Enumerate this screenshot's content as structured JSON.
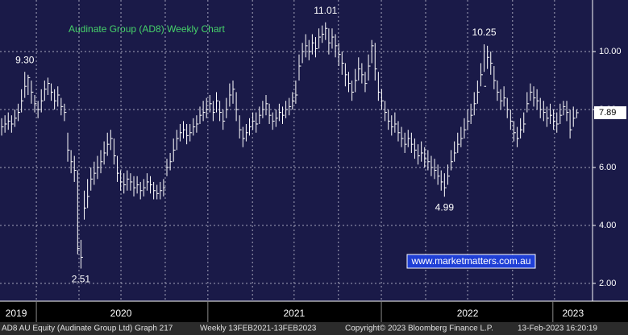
{
  "chart_data": {
    "type": "ohlc",
    "title": "Audinate Group (AD8) Weekly Chart",
    "color": "#ffffff",
    "high": [
      7.7,
      7.8,
      7.9,
      7.8,
      8.0,
      8.2,
      8.7,
      9.3,
      9.2,
      9.0,
      8.5,
      8.3,
      8.7,
      9.0,
      9.1,
      8.9,
      8.7,
      8.8,
      8.4,
      8.2,
      7.2,
      6.6,
      6.4,
      5.9,
      3.5,
      5.2,
      5.6,
      6.0,
      6.2,
      6.4,
      6.6,
      6.9,
      7.2,
      7.3,
      7.0,
      6.4,
      5.9,
      5.8,
      5.9,
      5.8,
      5.7,
      5.7,
      5.5,
      5.6,
      5.8,
      5.7,
      5.5,
      5.4,
      5.5,
      5.6,
      6.3,
      6.5,
      7.0,
      7.3,
      7.5,
      7.6,
      7.5,
      7.5,
      7.7,
      7.8,
      8.1,
      8.3,
      8.4,
      8.5,
      8.3,
      8.6,
      8.3,
      8.0,
      8.4,
      8.9,
      9.0,
      8.6,
      7.8,
      7.4,
      7.5,
      7.7,
      7.9,
      7.9,
      8.1,
      8.3,
      8.5,
      8.2,
      7.9,
      8.0,
      8.2,
      8.1,
      8.3,
      8.4,
      8.6,
      9.0,
      9.9,
      10.3,
      10.6,
      10.4,
      10.6,
      10.5,
      10.8,
      10.9,
      11.01,
      10.8,
      10.8,
      10.6,
      10.3,
      10.0,
      9.6,
      9.3,
      9.0,
      9.4,
      9.8,
      9.6,
      9.3,
      9.9,
      10.4,
      10.3,
      9.3,
      8.7,
      8.3,
      8.0,
      7.8,
      7.9,
      7.6,
      7.4,
      7.2,
      7.3,
      7.2,
      7.0,
      6.8,
      6.9,
      6.7,
      6.6,
      6.4,
      6.3,
      6.1,
      5.9,
      5.8,
      6.1,
      6.6,
      6.9,
      7.2,
      7.4,
      7.7,
      8.0,
      8.2,
      8.6,
      9.0,
      9.6,
      10.25,
      10.2,
      10.0,
      9.5,
      9.0,
      8.7,
      8.8,
      8.4,
      8.0,
      7.6,
      7.4,
      7.7,
      7.9,
      8.6,
      8.9,
      8.8,
      8.7,
      8.4,
      8.3,
      8.1,
      8.2,
      8.0,
      7.9,
      8.2,
      8.3,
      8.3,
      8.0,
      8.1,
      8.0
    ],
    "low": [
      7.1,
      7.2,
      7.3,
      7.2,
      7.4,
      7.6,
      7.9,
      8.4,
      8.5,
      8.2,
      7.9,
      7.7,
      7.9,
      8.3,
      8.5,
      8.3,
      8.0,
      8.1,
      7.8,
      7.6,
      6.2,
      5.8,
      5.5,
      3.0,
      2.51,
      4.2,
      4.6,
      5.2,
      5.4,
      5.6,
      5.8,
      6.1,
      6.4,
      6.6,
      6.1,
      5.5,
      5.2,
      5.1,
      5.2,
      5.2,
      5.0,
      5.1,
      4.9,
      5.0,
      5.2,
      5.1,
      4.9,
      4.9,
      4.9,
      5.0,
      5.7,
      5.9,
      6.2,
      6.6,
      6.9,
      7.0,
      6.8,
      6.9,
      7.1,
      7.2,
      7.5,
      7.6,
      7.7,
      7.9,
      7.6,
      7.9,
      7.6,
      7.3,
      7.7,
      8.1,
      8.2,
      7.6,
      7.0,
      6.7,
      6.9,
      7.1,
      7.3,
      7.2,
      7.5,
      7.7,
      7.8,
      7.5,
      7.3,
      7.4,
      7.6,
      7.5,
      7.7,
      7.8,
      8.0,
      8.2,
      9.0,
      9.6,
      9.8,
      9.7,
      9.9,
      9.8,
      10.1,
      10.3,
      10.4,
      9.9,
      10.1,
      9.8,
      9.5,
      9.2,
      8.8,
      8.6,
      8.3,
      8.6,
      9.0,
      8.9,
      8.6,
      9.0,
      9.6,
      9.0,
      8.3,
      8.0,
      7.6,
      7.3,
      7.1,
      7.2,
      6.9,
      6.7,
      6.5,
      6.7,
      6.5,
      6.3,
      6.1,
      6.2,
      6.0,
      5.9,
      5.7,
      5.6,
      5.4,
      5.2,
      4.99,
      5.4,
      5.9,
      6.2,
      6.5,
      6.7,
      7.0,
      7.3,
      7.5,
      7.8,
      8.2,
      8.8,
      9.3,
      9.4,
      9.2,
      8.7,
      8.3,
      8.0,
      8.1,
      7.7,
      7.3,
      6.9,
      6.7,
      7.0,
      7.2,
      7.9,
      8.3,
      8.1,
      8.0,
      7.7,
      7.6,
      7.4,
      7.5,
      7.3,
      7.2,
      7.5,
      7.8,
      7.6,
      7.0,
      7.4,
      7.7
    ],
    "close": [
      7.4,
      7.5,
      7.6,
      7.5,
      7.7,
      7.9,
      8.3,
      8.8,
      9.1,
      8.6,
      8.2,
      8.0,
      8.3,
      8.7,
      8.9,
      8.6,
      8.3,
      8.5,
      8.1,
      7.9,
      6.6,
      6.2,
      5.9,
      3.2,
      2.9,
      4.6,
      5.0,
      5.6,
      5.8,
      6.0,
      6.2,
      6.5,
      6.8,
      7.0,
      6.4,
      5.8,
      5.5,
      5.4,
      5.6,
      5.5,
      5.3,
      5.4,
      5.2,
      5.3,
      5.5,
      5.4,
      5.2,
      5.1,
      5.2,
      5.3,
      6.0,
      6.2,
      6.6,
      7.0,
      7.2,
      7.3,
      7.1,
      7.2,
      7.4,
      7.5,
      7.8,
      7.9,
      8.0,
      8.2,
      7.9,
      8.3,
      7.9,
      7.6,
      8.0,
      8.5,
      8.7,
      8.0,
      7.3,
      7.0,
      7.2,
      7.4,
      7.6,
      7.5,
      7.8,
      8.0,
      8.2,
      7.8,
      7.6,
      7.7,
      7.9,
      7.8,
      8.0,
      8.1,
      8.3,
      8.5,
      9.5,
      10.0,
      10.2,
      10.0,
      10.3,
      10.1,
      10.5,
      10.6,
      10.8,
      10.3,
      10.5,
      10.2,
      9.9,
      9.6,
      9.2,
      8.9,
      8.6,
      9.0,
      9.4,
      9.2,
      8.9,
      9.5,
      10.2,
      9.4,
      8.6,
      8.3,
      7.9,
      7.6,
      7.4,
      7.5,
      7.2,
      7.0,
      6.8,
      7.0,
      6.8,
      6.6,
      6.4,
      6.5,
      6.3,
      6.2,
      6.0,
      5.9,
      5.7,
      5.5,
      5.3,
      5.7,
      6.2,
      6.5,
      6.8,
      7.0,
      7.3,
      7.6,
      7.8,
      8.2,
      8.6,
      9.2,
      8.8,
      9.8,
      9.6,
      9.0,
      8.6,
      8.3,
      8.4,
      8.0,
      7.6,
      7.2,
      7.0,
      7.3,
      7.5,
      8.2,
      8.6,
      8.4,
      8.3,
      8.0,
      7.9,
      7.7,
      7.8,
      7.6,
      7.5,
      7.8,
      8.1,
      7.9,
      7.3,
      7.7,
      7.89
    ],
    "annotations": [
      {
        "text": "9.30",
        "value": 9.3,
        "at": "high"
      },
      {
        "text": "2.51",
        "value": 2.51,
        "at": "low"
      },
      {
        "text": "11.01",
        "value": 11.01,
        "at": "high"
      },
      {
        "text": "4.99",
        "value": 4.99,
        "at": "low"
      },
      {
        "text": "10.25",
        "value": 10.25,
        "at": "high"
      }
    ],
    "xlim": [
      -0.5,
      178.8
    ],
    "xticks": [
      {
        "value": 4.4,
        "label": "2019"
      },
      {
        "value": 36.1,
        "label": "2020"
      },
      {
        "value": 88.5,
        "label": "2021"
      },
      {
        "value": 141,
        "label": "2022"
      },
      {
        "value": 172.9,
        "label": "2023"
      }
    ],
    "year_boundaries": [
      10.5,
      62.4,
      114.9,
      166.8
    ],
    "xgrid": [
      10.5,
      23.4,
      36.1,
      49.5,
      62.4,
      75.9,
      88.5,
      101.9,
      114.9,
      128.3,
      141,
      154.6,
      167.3
    ],
    "ylim": [
      1.44,
      11.78
    ],
    "yticks": [
      {
        "value": 2,
        "label": "2.00"
      },
      {
        "value": 4,
        "label": "4.00"
      },
      {
        "value": 6,
        "label": "6.00"
      },
      {
        "value": 8,
        "label": "8.00"
      },
      {
        "value": 10,
        "label": "10.00"
      }
    ],
    "grid": true,
    "link": "www.marketmatters.com.au",
    "footer": [
      "AD8 AU Equity (Audinate Group Ltd) Graph 217",
      "Weekly 13FEB2021-13FEB2023",
      "Copyright© 2023 Bloomberg Finance L.P.",
      "13-Feb-2023 16:20:19"
    ]
  }
}
